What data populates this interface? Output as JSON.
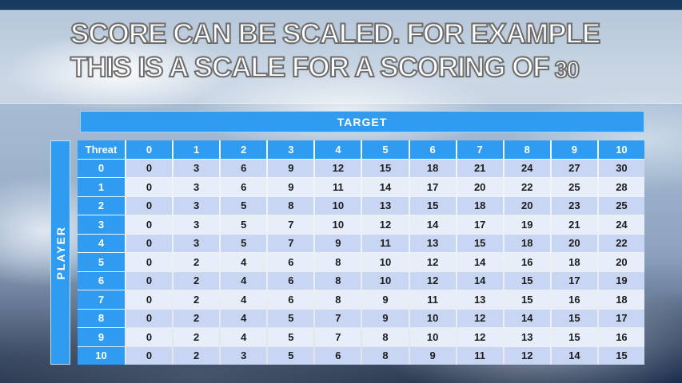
{
  "slide": {
    "title_line1": "SCORE CAN BE SCALED. FOR EXAMPLE",
    "title_line2_text": "THIS IS A SCALE FOR A SCORING OF",
    "title_line2_number": "30"
  },
  "table": {
    "target_label": "TARGET",
    "player_label": "PLAYER",
    "corner_label": "Threat",
    "column_headers": [
      "0",
      "1",
      "2",
      "3",
      "4",
      "5",
      "6",
      "7",
      "8",
      "9",
      "10"
    ],
    "rows": [
      {
        "header": "0",
        "values": [
          0,
          3,
          6,
          9,
          12,
          15,
          18,
          21,
          24,
          27,
          30
        ]
      },
      {
        "header": "1",
        "values": [
          0,
          3,
          6,
          9,
          11,
          14,
          17,
          20,
          22,
          25,
          28
        ]
      },
      {
        "header": "2",
        "values": [
          0,
          3,
          5,
          8,
          10,
          13,
          15,
          18,
          20,
          23,
          25
        ]
      },
      {
        "header": "3",
        "values": [
          0,
          3,
          5,
          7,
          10,
          12,
          14,
          17,
          19,
          21,
          24
        ]
      },
      {
        "header": "4",
        "values": [
          0,
          3,
          5,
          7,
          9,
          11,
          13,
          15,
          18,
          20,
          22
        ]
      },
      {
        "header": "5",
        "values": [
          0,
          2,
          4,
          6,
          8,
          10,
          12,
          14,
          16,
          18,
          20
        ]
      },
      {
        "header": "6",
        "values": [
          0,
          2,
          4,
          6,
          8,
          10,
          12,
          14,
          15,
          17,
          19
        ]
      },
      {
        "header": "7",
        "values": [
          0,
          2,
          4,
          6,
          8,
          9,
          11,
          13,
          15,
          16,
          18
        ]
      },
      {
        "header": "8",
        "values": [
          0,
          2,
          4,
          5,
          7,
          9,
          10,
          12,
          14,
          15,
          17
        ]
      },
      {
        "header": "9",
        "values": [
          0,
          2,
          4,
          5,
          7,
          8,
          10,
          12,
          13,
          15,
          16
        ]
      },
      {
        "header": "10",
        "values": [
          0,
          2,
          3,
          5,
          6,
          8,
          9,
          11,
          12,
          14,
          15
        ]
      }
    ]
  },
  "colors": {
    "header_blue": "#2F9CF2",
    "header_border": "#9ED1F8",
    "row_even": "#C9D6F3",
    "row_odd": "#E8EDFA",
    "title_text": "#FFFFFF",
    "title_outline": "#6E6E6E",
    "top_band_navy": "#16395F"
  }
}
